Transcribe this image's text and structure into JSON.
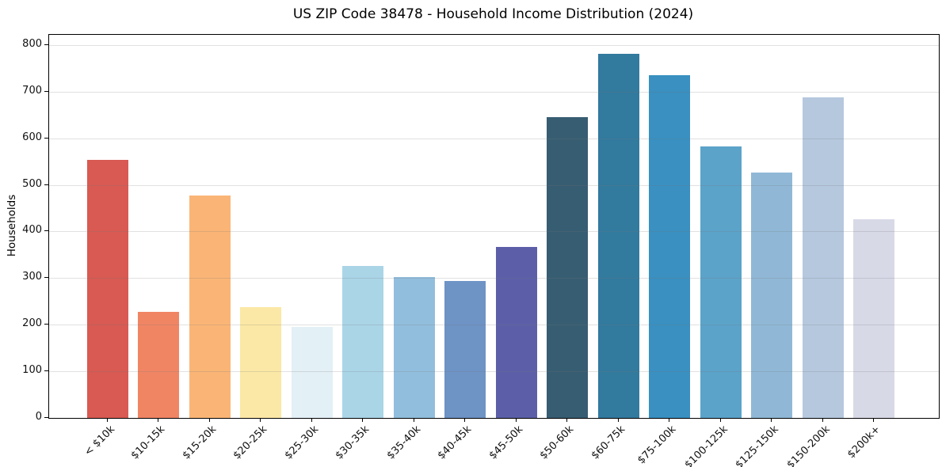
{
  "chart_data": {
    "type": "bar",
    "title": "US ZIP Code 38478 - Household Income Distribution (2024)",
    "xlabel": "",
    "ylabel": "Households",
    "categories": [
      "< $10k",
      "$10-15k",
      "$15-20k",
      "$20-25k",
      "$25-30k",
      "$30-35k",
      "$35-40k",
      "$40-45k",
      "$45-50k",
      "$50-60k",
      "$60-75k",
      "$75-100k",
      "$100-125k",
      "$125-150k",
      "$150-200k",
      "$200k+"
    ],
    "values": [
      553,
      228,
      478,
      238,
      196,
      326,
      302,
      294,
      367,
      646,
      782,
      736,
      582,
      526,
      688,
      427
    ],
    "bar_colors": [
      "#d85a52",
      "#f08564",
      "#fab576",
      "#fce8a6",
      "#e3f0f6",
      "#aad5e7",
      "#92bedd",
      "#6e93c5",
      "#5c5fa8",
      "#375d72",
      "#327a9e",
      "#3990c1",
      "#5ba3c9",
      "#90b8d6",
      "#b5c8de",
      "#d8d9e7"
    ],
    "yticks": [
      0,
      100,
      200,
      300,
      400,
      500,
      600,
      700,
      800
    ],
    "ylim": [
      0,
      822
    ],
    "grid": "horizontal",
    "grid_over_bars": true,
    "legend": "none",
    "x_tick_rotation_deg": 45,
    "background_color": "#ffffff",
    "spine_color": "#000000"
  }
}
